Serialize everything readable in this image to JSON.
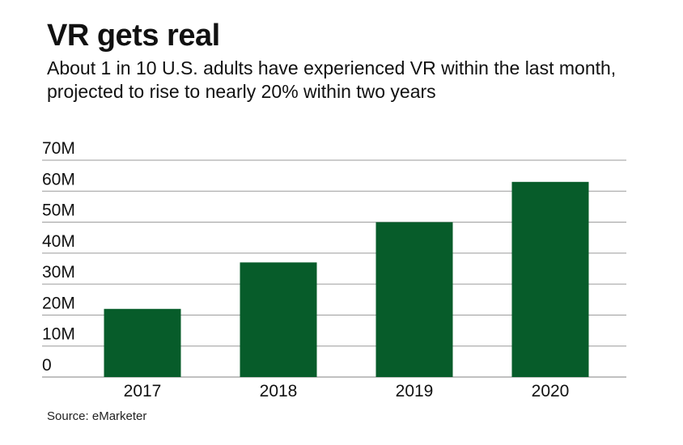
{
  "header": {
    "title": "VR gets real",
    "subtitle": "About 1 in 10 U.S. adults have experienced VR within the last month, projected to rise to nearly 20% within two years"
  },
  "footer": {
    "source": "Source: eMarketer"
  },
  "colors": {
    "bar": "#075c2a",
    "grid": "#9a9a9a",
    "text": "#111111"
  },
  "chart_data": {
    "type": "bar",
    "categories": [
      "2017",
      "2018",
      "2019",
      "2020"
    ],
    "values": [
      22,
      37,
      50,
      63
    ],
    "value_unit": "millions",
    "ylim": [
      0,
      70
    ],
    "yticks": [
      0,
      10,
      20,
      30,
      40,
      50,
      60,
      70
    ],
    "ytick_labels": [
      "0",
      "10M",
      "20M",
      "30M",
      "40M",
      "50M",
      "60M",
      "70M"
    ],
    "title": "VR gets real",
    "xlabel": "",
    "ylabel": "",
    "grid": true,
    "legend": "none"
  }
}
